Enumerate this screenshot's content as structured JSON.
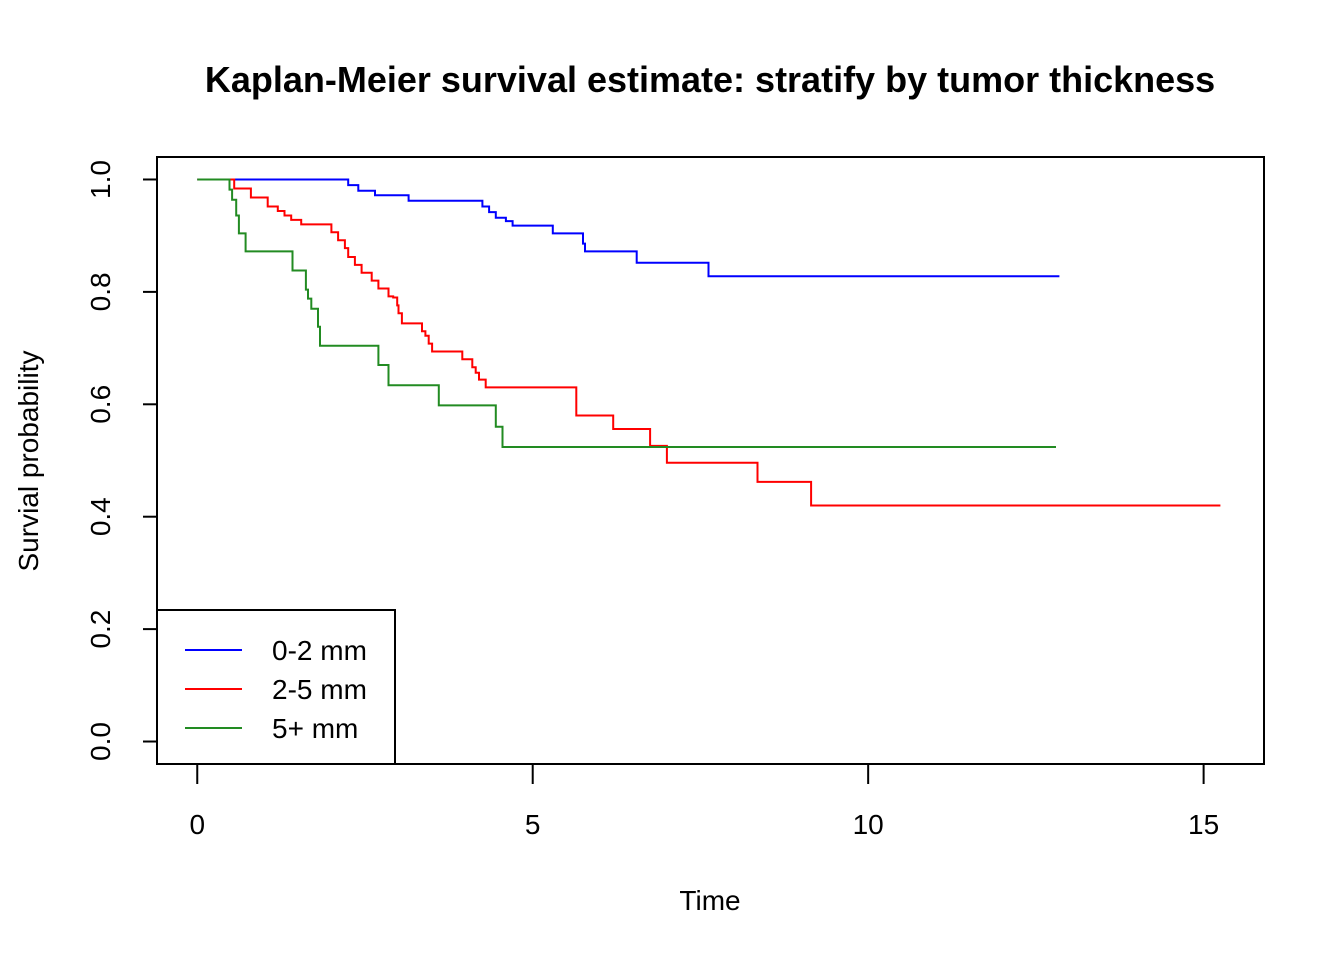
{
  "chart_data": {
    "type": "line",
    "title": "Kaplan-Meier survival estimate: stratify by tumor thickness",
    "xlabel": "Time",
    "ylabel": "Survial probability",
    "xlim": [
      -0.6,
      15.9
    ],
    "ylim": [
      -0.04,
      1.04
    ],
    "xticks": [
      0,
      5,
      10,
      15
    ],
    "xtick_labels": [
      "0",
      "5",
      "10",
      "15"
    ],
    "yticks": [
      0.0,
      0.2,
      0.4,
      0.6,
      0.8,
      1.0
    ],
    "ytick_labels": [
      "0.0",
      "0.2",
      "0.4",
      "0.6",
      "0.8",
      "1.0"
    ],
    "grid": false,
    "step": true,
    "legend": {
      "position": "bottom-left"
    },
    "series": [
      {
        "name": "0-2 mm",
        "color": "#0000ff",
        "x": [
          0,
          2.25,
          2.4,
          2.65,
          3.15,
          4.25,
          4.35,
          4.45,
          4.6,
          4.7,
          5.3,
          5.75,
          5.78,
          6.55,
          7.62,
          12.85
        ],
        "y": [
          1.0,
          0.99,
          0.98,
          0.972,
          0.962,
          0.952,
          0.942,
          0.932,
          0.926,
          0.918,
          0.904,
          0.886,
          0.872,
          0.852,
          0.828,
          0.828
        ]
      },
      {
        "name": "2-5 mm",
        "color": "#ff0000",
        "x": [
          0,
          0.55,
          0.8,
          1.05,
          1.2,
          1.3,
          1.4,
          1.55,
          2.0,
          2.1,
          2.2,
          2.25,
          2.35,
          2.45,
          2.6,
          2.7,
          2.85,
          2.92,
          2.98,
          3.0,
          3.05,
          3.35,
          3.4,
          3.45,
          3.5,
          3.95,
          4.1,
          4.15,
          4.2,
          4.3,
          5.65,
          6.2,
          6.75,
          7.0,
          8.35,
          9.15,
          15.25
        ],
        "y": [
          1.0,
          0.984,
          0.968,
          0.952,
          0.944,
          0.936,
          0.928,
          0.92,
          0.906,
          0.892,
          0.878,
          0.862,
          0.848,
          0.834,
          0.82,
          0.806,
          0.792,
          0.79,
          0.776,
          0.762,
          0.744,
          0.73,
          0.722,
          0.708,
          0.694,
          0.68,
          0.666,
          0.656,
          0.644,
          0.63,
          0.58,
          0.556,
          0.526,
          0.496,
          0.462,
          0.42,
          0.42
        ]
      },
      {
        "name": "5+ mm",
        "color": "#228b22",
        "x": [
          0,
          0.48,
          0.52,
          0.58,
          0.62,
          0.72,
          1.42,
          1.62,
          1.65,
          1.7,
          1.8,
          1.83,
          2.7,
          2.85,
          3.6,
          4.45,
          4.55,
          12.8
        ],
        "y": [
          1.0,
          0.982,
          0.964,
          0.936,
          0.904,
          0.872,
          0.838,
          0.804,
          0.788,
          0.77,
          0.738,
          0.704,
          0.67,
          0.634,
          0.598,
          0.56,
          0.524,
          0.524
        ]
      }
    ]
  }
}
